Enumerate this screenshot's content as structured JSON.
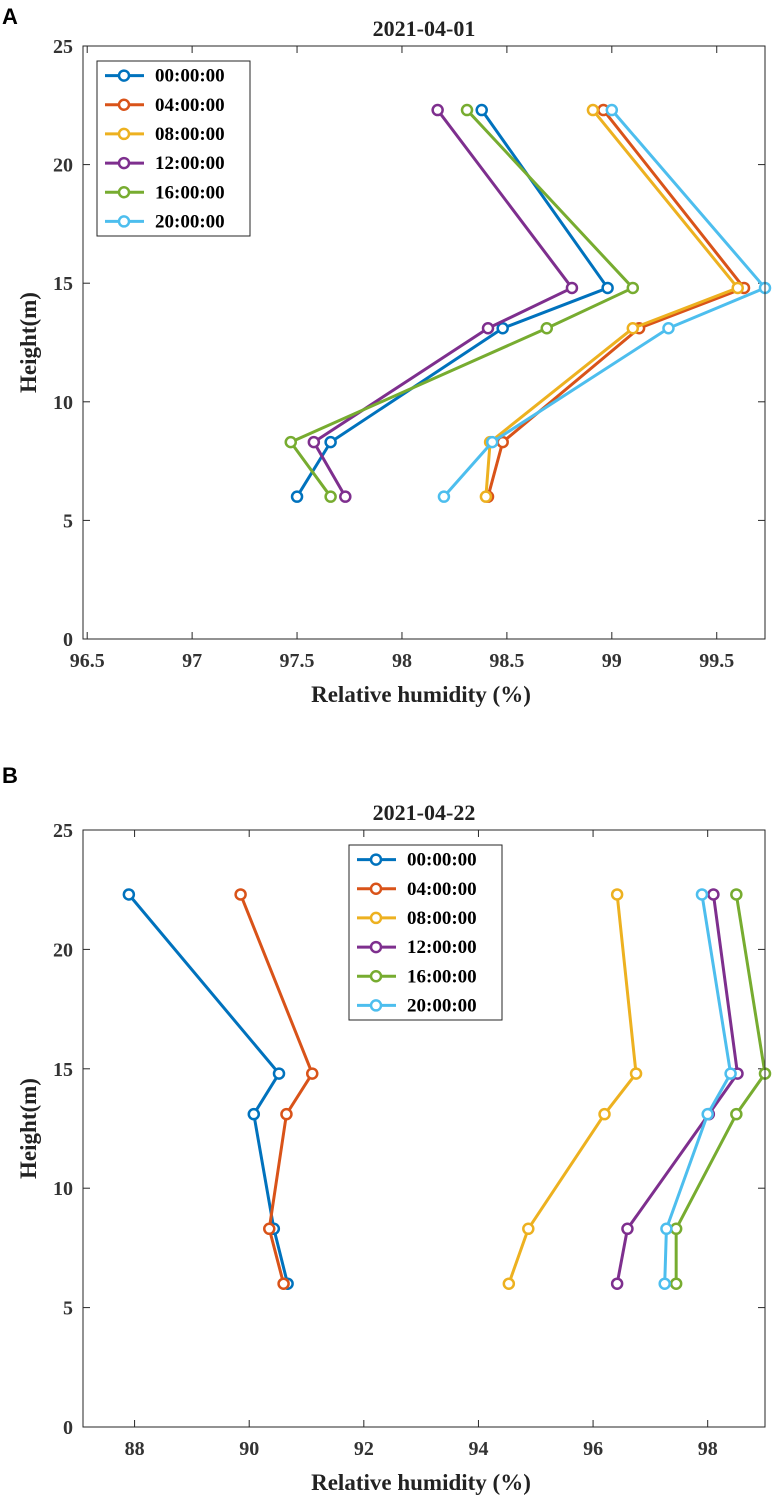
{
  "chart_data": [
    {
      "panel": "A",
      "type": "line",
      "title": "2021-04-01",
      "xlabel": "Relative humidity (%)",
      "ylabel": "Height(m)",
      "xlim": [
        96.48,
        99.73
      ],
      "ylim": [
        0,
        25
      ],
      "xticks": [
        96.5,
        97,
        97.5,
        98,
        98.5,
        99,
        99.5
      ],
      "xtick_labels": [
        "96.5",
        "97",
        "97.5",
        "98",
        "98.5",
        "99",
        "99.5"
      ],
      "yticks": [
        0,
        5,
        10,
        15,
        20,
        25
      ],
      "ytick_labels": [
        "0",
        "5",
        "10",
        "15",
        "20",
        "25"
      ],
      "heights": [
        6,
        8.3,
        13.1,
        14.8,
        22.3
      ],
      "legend_position": "top-left",
      "series": [
        {
          "name": "00:00:00",
          "color": "#0072BD",
          "values": [
            97.5,
            97.66,
            98.48,
            98.98,
            98.38
          ]
        },
        {
          "name": "04:00:00",
          "color": "#D95319",
          "values": [
            98.41,
            98.48,
            99.13,
            99.63,
            98.96
          ]
        },
        {
          "name": "08:00:00",
          "color": "#EDB120",
          "values": [
            98.4,
            98.42,
            99.1,
            99.6,
            98.91
          ]
        },
        {
          "name": "12:00:00",
          "color": "#7E2F8E",
          "values": [
            97.73,
            97.58,
            98.41,
            98.81,
            98.17
          ]
        },
        {
          "name": "16:00:00",
          "color": "#77AC30",
          "values": [
            97.66,
            97.47,
            98.69,
            99.1,
            98.31
          ]
        },
        {
          "name": "20:00:00",
          "color": "#4DBEEE",
          "values": [
            98.2,
            98.43,
            99.27,
            99.73,
            99.0
          ]
        }
      ]
    },
    {
      "panel": "B",
      "type": "line",
      "title": "2021-04-22",
      "xlabel": "Relative humidity (%)",
      "ylabel": "Height(m)",
      "xlim": [
        87.1,
        99.0
      ],
      "ylim": [
        0,
        25
      ],
      "xticks": [
        88,
        90,
        92,
        94,
        96,
        98
      ],
      "xtick_labels": [
        "88",
        "90",
        "92",
        "94",
        "96",
        "98"
      ],
      "yticks": [
        0,
        5,
        10,
        15,
        20,
        25
      ],
      "ytick_labels": [
        "0",
        "5",
        "10",
        "15",
        "20",
        "25"
      ],
      "heights": [
        6,
        8.3,
        13.1,
        14.8,
        22.3
      ],
      "legend_position": "top-center",
      "series": [
        {
          "name": "00:00:00",
          "color": "#0072BD",
          "values": [
            90.67,
            90.43,
            90.08,
            90.52,
            87.9
          ]
        },
        {
          "name": "04:00:00",
          "color": "#D95319",
          "values": [
            90.6,
            90.35,
            90.65,
            91.1,
            89.85
          ]
        },
        {
          "name": "08:00:00",
          "color": "#EDB120",
          "values": [
            94.53,
            94.87,
            96.2,
            96.75,
            96.42
          ]
        },
        {
          "name": "12:00:00",
          "color": "#7E2F8E",
          "values": [
            96.42,
            96.6,
            98.02,
            98.52,
            98.1
          ]
        },
        {
          "name": "16:00:00",
          "color": "#77AC30",
          "values": [
            97.45,
            97.45,
            98.5,
            99.0,
            98.5
          ]
        },
        {
          "name": "20:00:00",
          "color": "#4DBEEE",
          "values": [
            97.25,
            97.28,
            98.0,
            98.4,
            97.9
          ]
        }
      ]
    }
  ]
}
